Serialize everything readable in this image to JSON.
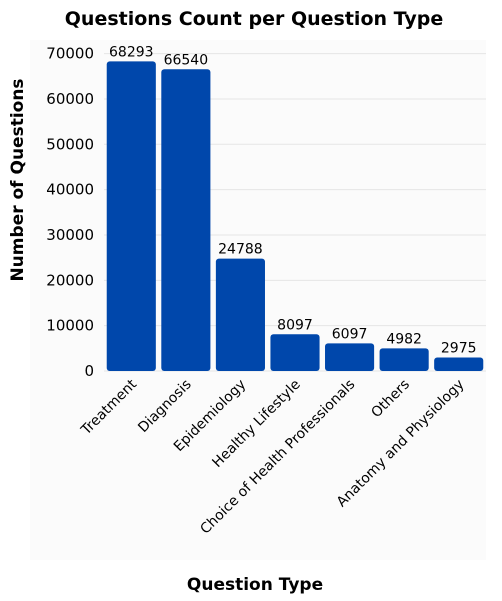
{
  "chart_data": {
    "type": "bar",
    "title": "Questions Count per Question Type",
    "xlabel": "Question Type",
    "ylabel": "Number of Questions",
    "categories": [
      "Treatment",
      "Diagnosis",
      "Epidemiology",
      "Healthy Lifestyle",
      "Choice of Health Professionals",
      "Others",
      "Anatomy and Physiology"
    ],
    "values": [
      68293,
      66540,
      24788,
      8097,
      6097,
      4982,
      2975
    ],
    "ylim": [
      0,
      73000
    ],
    "yticks": [
      "0",
      "10000",
      "20000",
      "30000",
      "40000",
      "50000",
      "60000",
      "70000"
    ],
    "data_labels": [
      "68293",
      "66540",
      "24788",
      "8097",
      "6097",
      "4982",
      "2975"
    ],
    "grid": true,
    "bar_color": "#0047ab",
    "background_color": "#fbfbfb"
  }
}
